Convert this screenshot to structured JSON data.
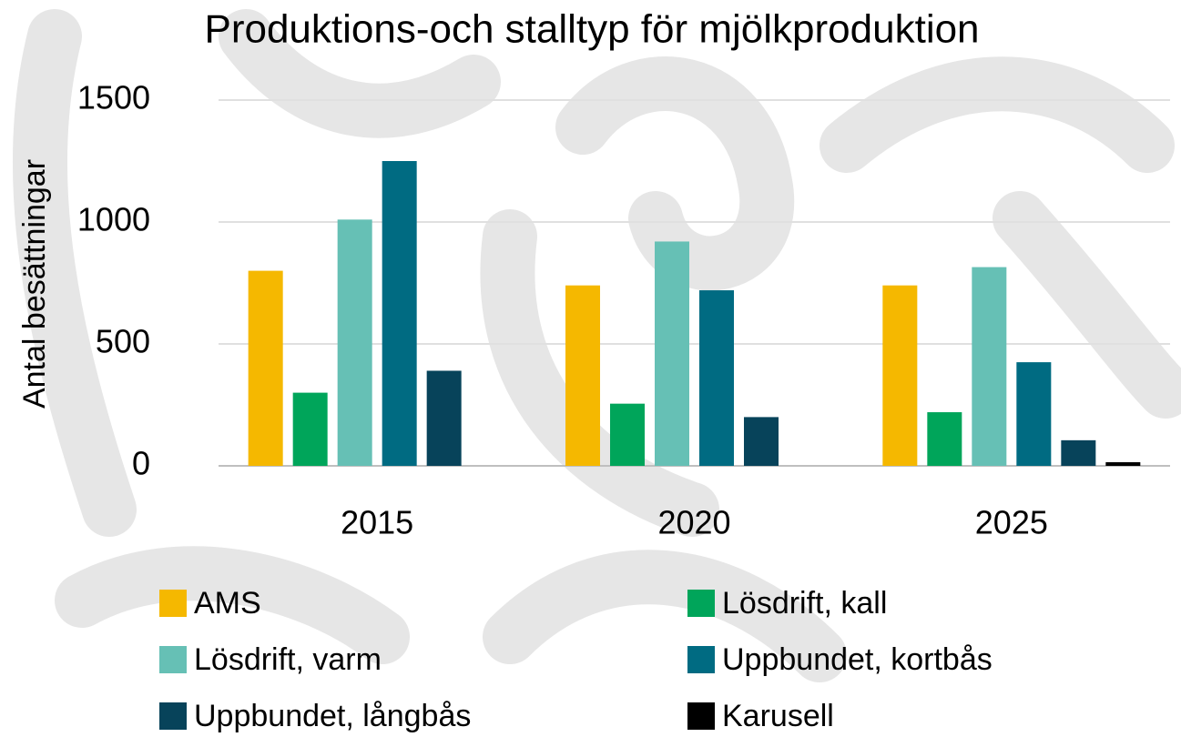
{
  "chart_data": {
    "type": "bar",
    "title": "Produktions-och stalltyp för mjölkproduktion",
    "y_label": "Antal besättningar",
    "categories": [
      "2015",
      "2020",
      "2025"
    ],
    "series": [
      {
        "name": "AMS",
        "color": "#f5b800",
        "values": [
          800,
          740,
          740
        ]
      },
      {
        "name": "Lösdrift, kall",
        "color": "#00a55a",
        "values": [
          300,
          255,
          220
        ]
      },
      {
        "name": "Lösdrift, varm",
        "color": "#66c0b5",
        "values": [
          1010,
          920,
          815
        ]
      },
      {
        "name": "Uppbundet, kortbås",
        "color": "#006b82",
        "values": [
          1250,
          720,
          425
        ]
      },
      {
        "name": "Uppbundet, långbås",
        "color": "#07435a",
        "values": [
          390,
          200,
          105
        ]
      },
      {
        "name": "Karusell",
        "color": "#000000",
        "values": [
          0,
          0,
          15
        ]
      }
    ],
    "ylim": [
      0,
      1500
    ],
    "yticks": [
      0,
      500,
      1000,
      1500
    ],
    "grid": true,
    "legend": "bottom"
  }
}
